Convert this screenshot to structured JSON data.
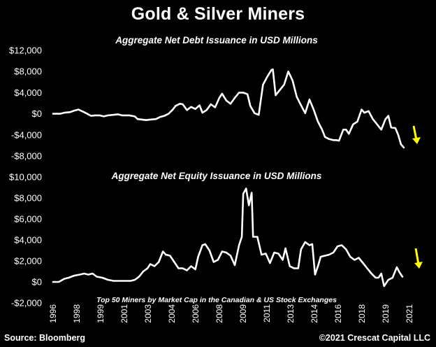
{
  "title": "Gold & Silver Miners",
  "source": "Source: Bloomberg",
  "copyright": "©2021 Crescat Capital LLC",
  "note": "Top 50 Miners by Market Cap in the Canadian & US Stock Exchanges",
  "colors": {
    "background": "#000000",
    "line": "#ffffff",
    "arrow": "#ffff00"
  },
  "chart_data": [
    {
      "type": "line",
      "title": "Aggregate Net Debt Issuance in USD Millions",
      "ylim": [
        -8000,
        12000
      ],
      "yticks": [
        12000,
        8000,
        4000,
        0,
        -4000,
        -8000
      ],
      "ytick_labels": [
        "$12,000",
        "$8,000",
        "$4,000",
        "$0",
        "-$4,000",
        "-$8,000"
      ],
      "annotation": "downward yellow arrow after last point",
      "series": [
        {
          "x": [
            1996.0,
            1996.5,
            1996.8,
            1997.2,
            1997.5,
            1997.8,
            1998.2,
            1998.7,
            1999.0,
            1999.3,
            1999.6,
            1999.9,
            2000.3,
            2000.6,
            2000.9,
            2001.1,
            2001.4,
            2001.8,
            2002.0,
            2002.3,
            2002.6,
            2002.9,
            2003.3,
            2003.6,
            2003.9,
            2004.2,
            2004.5,
            2004.7,
            2005.0,
            2005.2,
            2005.5,
            2005.8,
            2006.1,
            2006.4,
            2006.6,
            2006.9,
            2007.2,
            2007.5,
            2007.8,
            2008.0,
            2008.3,
            2008.6,
            2008.9,
            2009.2,
            2009.5,
            2009.8,
            2010.0,
            2010.3,
            2010.6,
            2010.9,
            2011.2,
            2011.5,
            2011.6,
            2011.8,
            2012.1,
            2012.4,
            2012.7,
            2013.0,
            2013.3,
            2013.6,
            2013.9,
            2014.2,
            2014.5,
            2014.8,
            2015.1,
            2015.3,
            2015.6,
            2015.9,
            2016.1,
            2016.3,
            2016.6,
            2016.8,
            2017.0,
            2017.3,
            2017.6,
            2017.9,
            2018.1,
            2018.4,
            2018.7,
            2019.0,
            2019.3,
            2019.6,
            2019.8,
            2020.0,
            2020.3,
            2020.5,
            2020.7,
            2020.9
          ],
          "y": [
            0,
            0,
            200,
            300,
            600,
            800,
            300,
            -400,
            -300,
            -300,
            -500,
            -300,
            -200,
            -100,
            -300,
            -300,
            -300,
            -500,
            -1000,
            -1100,
            -1200,
            -1100,
            -1000,
            -600,
            -400,
            0,
            800,
            1500,
            1900,
            1800,
            700,
            1300,
            900,
            1600,
            200,
            700,
            1800,
            1200,
            3000,
            3800,
            2500,
            1900,
            3000,
            4000,
            4000,
            3700,
            1500,
            100,
            -200,
            5500,
            7000,
            8300,
            8400,
            3500,
            4500,
            5500,
            8000,
            6300,
            3200,
            1600,
            100,
            2700,
            800,
            -1500,
            -3000,
            -4400,
            -4800,
            -5000,
            -5000,
            -5100,
            -3000,
            -3000,
            -3800,
            -2000,
            -1500,
            800,
            200,
            500,
            -1000,
            -2000,
            -3000,
            -1000,
            -400,
            -2600,
            -2700,
            -4000,
            -5800,
            -6400
          ]
        }
      ]
    },
    {
      "type": "line",
      "title": "Aggregate Net Equity Issuance in USD Millions",
      "ylim": [
        -2000,
        10000
      ],
      "yticks": [
        10000,
        8000,
        6000,
        4000,
        2000,
        0,
        -2000
      ],
      "ytick_labels": [
        "$10,000",
        "$8,000",
        "$6,000",
        "$4,000",
        "$2,000",
        "$0",
        "-$2,000"
      ],
      "xlabels": [
        "1996",
        "1998",
        "1999",
        "2001",
        "2003",
        "2004",
        "2006",
        "2008",
        "2009",
        "2011",
        "2013",
        "2014",
        "2016",
        "2018",
        "2019",
        "2021"
      ],
      "annotation": "downward yellow arrow after last point",
      "series": [
        {
          "x": [
            1996.0,
            1996.4,
            1996.8,
            1997.1,
            1997.5,
            1997.9,
            1998.2,
            1998.5,
            1998.8,
            1999.1,
            1999.5,
            1999.9,
            2000.3,
            2000.6,
            2000.9,
            2001.2,
            2001.5,
            2001.8,
            2002.1,
            2002.4,
            2002.7,
            2002.9,
            2003.2,
            2003.5,
            2003.8,
            2004.0,
            2004.3,
            2004.6,
            2004.9,
            2005.2,
            2005.5,
            2005.8,
            2006.1,
            2006.3,
            2006.6,
            2006.8,
            2007.1,
            2007.4,
            2007.7,
            2008.0,
            2008.3,
            2008.6,
            2008.9,
            2009.2,
            2009.4,
            2009.5,
            2009.7,
            2009.9,
            2010.1,
            2010.2,
            2010.5,
            2010.8,
            2011.1,
            2011.4,
            2011.7,
            2012.0,
            2012.3,
            2012.5,
            2012.8,
            2013.1,
            2013.4,
            2013.6,
            2013.9,
            2014.2,
            2014.4,
            2014.6,
            2014.8,
            2015.0,
            2015.3,
            2015.6,
            2015.9,
            2016.2,
            2016.5,
            2016.8,
            2017.1,
            2017.4,
            2017.7,
            2018.0,
            2018.3,
            2018.6,
            2018.9,
            2019.1,
            2019.3,
            2019.5,
            2019.8,
            2020.1,
            2020.4,
            2020.6,
            2020.8
          ],
          "y": [
            0,
            0,
            300,
            400,
            600,
            700,
            800,
            700,
            800,
            500,
            400,
            200,
            100,
            100,
            100,
            100,
            100,
            200,
            500,
            1000,
            1300,
            1700,
            1500,
            1900,
            2900,
            2600,
            2500,
            1900,
            1300,
            1300,
            1100,
            1500,
            1200,
            2400,
            3500,
            3600,
            3000,
            1900,
            2100,
            2900,
            2800,
            2500,
            1600,
            3500,
            4300,
            8400,
            8900,
            7300,
            8500,
            4300,
            4300,
            2600,
            2700,
            1800,
            2800,
            2700,
            2100,
            3200,
            1500,
            1300,
            1300,
            3100,
            3800,
            3500,
            3600,
            700,
            1500,
            2400,
            2500,
            2600,
            2800,
            3400,
            3500,
            3100,
            2400,
            2100,
            2300,
            1800,
            1300,
            800,
            400,
            400,
            800,
            -400,
            200,
            400,
            1400,
            900,
            500
          ]
        }
      ]
    }
  ]
}
